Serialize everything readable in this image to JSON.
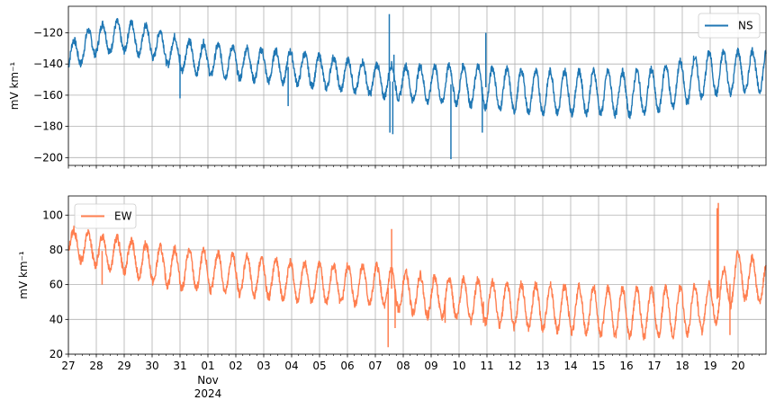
{
  "chart_data": [
    {
      "type": "line",
      "title": "",
      "xlabel": "",
      "ylabel": "mV km⁻¹",
      "ylim": [
        -205,
        -103
      ],
      "yticks": [
        -120,
        -140,
        -160,
        -180,
        -200
      ],
      "xlim": [
        "2024-10-27",
        "2024-11-21"
      ],
      "grid": true,
      "legend": "top-right",
      "series": [
        {
          "name": "NS",
          "color": "#1f77b4",
          "daily_mean": [
            {
              "x": "2024-10-27",
              "y": -136
            },
            {
              "x": "2024-10-28",
              "y": -124
            },
            {
              "x": "2024-10-29",
              "y": -122
            },
            {
              "x": "2024-10-30",
              "y": -126
            },
            {
              "x": "2024-10-31",
              "y": -134
            },
            {
              "x": "2024-11-01",
              "y": -137
            },
            {
              "x": "2024-11-02",
              "y": -139
            },
            {
              "x": "2024-11-03",
              "y": -141
            },
            {
              "x": "2024-11-04",
              "y": -142
            },
            {
              "x": "2024-11-05",
              "y": -145
            },
            {
              "x": "2024-11-06",
              "y": -147
            },
            {
              "x": "2024-11-07",
              "y": -150
            },
            {
              "x": "2024-11-08",
              "y": -152
            },
            {
              "x": "2024-11-09",
              "y": -153
            },
            {
              "x": "2024-11-10",
              "y": -153
            },
            {
              "x": "2024-11-11",
              "y": -155
            },
            {
              "x": "2024-11-12",
              "y": -157
            },
            {
              "x": "2024-11-13",
              "y": -158
            },
            {
              "x": "2024-11-14",
              "y": -158
            },
            {
              "x": "2024-11-15",
              "y": -158
            },
            {
              "x": "2024-11-16",
              "y": -159
            },
            {
              "x": "2024-11-17",
              "y": -157
            },
            {
              "x": "2024-11-18",
              "y": -152
            },
            {
              "x": "2024-11-19",
              "y": -146
            },
            {
              "x": "2024-11-20",
              "y": -145
            },
            {
              "x": "2024-11-21",
              "y": -144
            }
          ],
          "daily_amplitude": [
            {
              "x": "2024-10-27",
              "y": 9
            },
            {
              "x": "2024-10-31",
              "y": 10
            },
            {
              "x": "2024-11-07",
              "y": 10
            },
            {
              "x": "2024-11-11",
              "y": 13
            },
            {
              "x": "2024-11-17",
              "y": 14
            },
            {
              "x": "2024-11-21",
              "y": 13
            }
          ],
          "spikes": [
            {
              "x": "2024-10-31 00:00",
              "y": -162
            },
            {
              "x": "2024-11-03 21:00",
              "y": -167
            },
            {
              "x": "2024-11-07 12:00",
              "y": -108
            },
            {
              "x": "2024-11-07 12:30",
              "y": -184
            },
            {
              "x": "2024-11-07 15:00",
              "y": -185
            },
            {
              "x": "2024-11-07 16:00",
              "y": -134
            },
            {
              "x": "2024-11-09 17:00",
              "y": -201
            },
            {
              "x": "2024-11-10 20:00",
              "y": -184
            },
            {
              "x": "2024-11-10 23:00",
              "y": -120
            }
          ]
        }
      ]
    },
    {
      "type": "line",
      "title": "",
      "xlabel": "",
      "ylabel": "mV km⁻¹",
      "ylim": [
        20,
        111
      ],
      "yticks": [
        20,
        40,
        60,
        80,
        100
      ],
      "xlim": [
        "2024-10-27",
        "2024-11-21"
      ],
      "grid": true,
      "legend": "top-left",
      "xticks": [
        {
          "x": "2024-10-27",
          "label": "27"
        },
        {
          "x": "2024-10-28",
          "label": "28"
        },
        {
          "x": "2024-10-29",
          "label": "29"
        },
        {
          "x": "2024-10-30",
          "label": "30"
        },
        {
          "x": "2024-10-31",
          "label": "31"
        },
        {
          "x": "2024-11-01",
          "label": "01"
        },
        {
          "x": "2024-11-02",
          "label": "02"
        },
        {
          "x": "2024-11-03",
          "label": "03"
        },
        {
          "x": "2024-11-04",
          "label": "04"
        },
        {
          "x": "2024-11-05",
          "label": "05"
        },
        {
          "x": "2024-11-06",
          "label": "06"
        },
        {
          "x": "2024-11-07",
          "label": "07"
        },
        {
          "x": "2024-11-08",
          "label": "08"
        },
        {
          "x": "2024-11-09",
          "label": "09"
        },
        {
          "x": "2024-11-10",
          "label": "10"
        },
        {
          "x": "2024-11-11",
          "label": "11"
        },
        {
          "x": "2024-11-12",
          "label": "12"
        },
        {
          "x": "2024-11-13",
          "label": "13"
        },
        {
          "x": "2024-11-14",
          "label": "14"
        },
        {
          "x": "2024-11-15",
          "label": "15"
        },
        {
          "x": "2024-11-16",
          "label": "16"
        },
        {
          "x": "2024-11-17",
          "label": "17"
        },
        {
          "x": "2024-11-18",
          "label": "18"
        },
        {
          "x": "2024-11-19",
          "label": "19"
        },
        {
          "x": "2024-11-20",
          "label": "20"
        }
      ],
      "xtick_sublabel": {
        "x": "2024-11-01",
        "lines": [
          "Nov",
          "2024"
        ]
      },
      "series": [
        {
          "name": "EW",
          "color": "#ff7f50",
          "daily_mean": [
            {
              "x": "2024-10-27",
              "y": 84
            },
            {
              "x": "2024-10-28",
              "y": 80
            },
            {
              "x": "2024-10-29",
              "y": 77
            },
            {
              "x": "2024-10-30",
              "y": 72
            },
            {
              "x": "2024-10-31",
              "y": 69
            },
            {
              "x": "2024-11-01",
              "y": 68
            },
            {
              "x": "2024-11-02",
              "y": 66
            },
            {
              "x": "2024-11-03",
              "y": 64
            },
            {
              "x": "2024-11-04",
              "y": 62
            },
            {
              "x": "2024-11-05",
              "y": 61
            },
            {
              "x": "2024-11-06",
              "y": 60
            },
            {
              "x": "2024-11-07",
              "y": 60
            },
            {
              "x": "2024-11-08",
              "y": 56
            },
            {
              "x": "2024-11-09",
              "y": 53
            },
            {
              "x": "2024-11-10",
              "y": 52
            },
            {
              "x": "2024-11-11",
              "y": 50
            },
            {
              "x": "2024-11-12",
              "y": 48
            },
            {
              "x": "2024-11-13",
              "y": 47
            },
            {
              "x": "2024-11-14",
              "y": 46
            },
            {
              "x": "2024-11-15",
              "y": 45
            },
            {
              "x": "2024-11-16",
              "y": 44
            },
            {
              "x": "2024-11-17",
              "y": 44
            },
            {
              "x": "2024-11-18",
              "y": 45
            },
            {
              "x": "2024-11-19",
              "y": 47
            },
            {
              "x": "2024-11-20",
              "y": 66
            },
            {
              "x": "2024-11-21",
              "y": 60
            }
          ],
          "daily_amplitude": [
            {
              "x": "2024-10-27",
              "y": 8
            },
            {
              "x": "2024-10-31",
              "y": 11
            },
            {
              "x": "2024-11-07",
              "y": 11
            },
            {
              "x": "2024-11-11",
              "y": 12
            },
            {
              "x": "2024-11-17",
              "y": 14
            },
            {
              "x": "2024-11-21",
              "y": 12
            }
          ],
          "spikes": [
            {
              "x": "2024-10-28 05:00",
              "y": 60
            },
            {
              "x": "2024-11-07 11:00",
              "y": 24
            },
            {
              "x": "2024-11-07 14:00",
              "y": 92
            },
            {
              "x": "2024-11-07 17:00",
              "y": 35
            },
            {
              "x": "2024-11-09 12:00",
              "y": 38
            },
            {
              "x": "2024-11-10 21:00",
              "y": 38
            },
            {
              "x": "2024-11-19 06:00",
              "y": 104
            },
            {
              "x": "2024-11-19 07:00",
              "y": 107
            },
            {
              "x": "2024-11-19 17:00",
              "y": 31
            }
          ]
        }
      ]
    }
  ]
}
